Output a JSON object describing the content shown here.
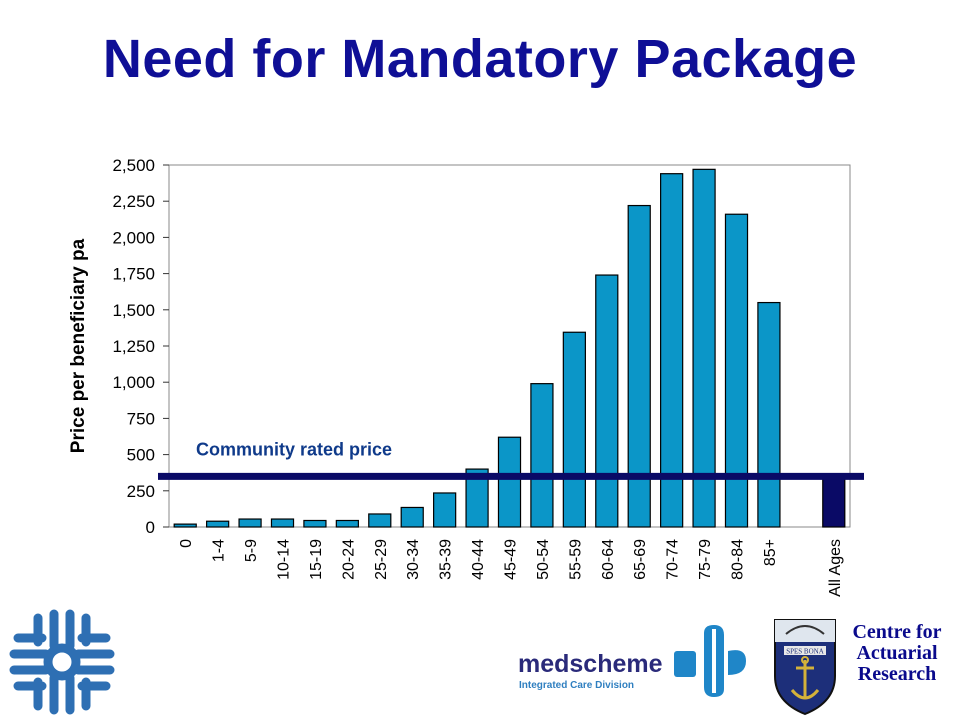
{
  "slide": {
    "title": "Need for Mandatory Package"
  },
  "chart_data": {
    "type": "bar",
    "ylabel": "Price per beneficiary pa",
    "xlabel": "",
    "ylim": [
      0,
      2500
    ],
    "yticks": [
      0,
      250,
      500,
      750,
      1000,
      1250,
      1500,
      1750,
      2000,
      2250,
      2500
    ],
    "ytick_labels": [
      "0",
      "250",
      "500",
      "750",
      "1,000",
      "1,250",
      "1,500",
      "1,750",
      "2,000",
      "2,250",
      "2,500"
    ],
    "categories": [
      "0",
      "1-4",
      "5-9",
      "10-14",
      "15-19",
      "20-24",
      "25-29",
      "30-34",
      "35-39",
      "40-44",
      "45-49",
      "50-54",
      "55-59",
      "60-64",
      "65-69",
      "70-74",
      "75-79",
      "80-84",
      "85+",
      "",
      "All Ages"
    ],
    "values": [
      20,
      40,
      55,
      55,
      45,
      45,
      90,
      135,
      235,
      400,
      620,
      990,
      1345,
      1740,
      2220,
      2440,
      2470,
      2160,
      1550,
      null,
      350
    ],
    "bar_color": "#0b96c8",
    "highlight_bar_color": "#0a0a66",
    "reference_line": {
      "label": "Community rated price",
      "value": 350,
      "color": "#0a0a66"
    },
    "grid": false
  },
  "footer": {
    "medscheme_name": "medscheme",
    "medscheme_division": "Integrated Care Division",
    "car_text": "Centre for Actuarial Research",
    "crest_motto": "SPES BONA"
  }
}
